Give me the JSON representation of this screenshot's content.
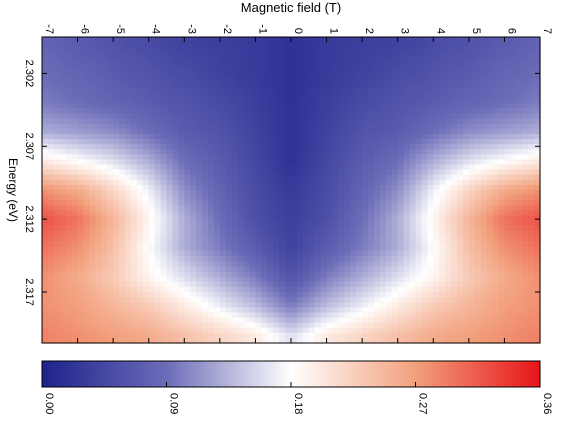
{
  "chart_data": {
    "type": "heatmap",
    "title": "",
    "xlabel": "Magnetic field (T)",
    "ylabel": "Energy (eV)",
    "x_ticks": [
      "-7",
      "-6",
      "-5",
      "-4",
      "-3",
      "-2",
      "-1",
      "0",
      "1",
      "2",
      "3",
      "4",
      "5",
      "6",
      "7"
    ],
    "y_ticks": [
      "2.302",
      "2.307",
      "2.312",
      "2.317"
    ],
    "xlim": [
      -7,
      7
    ],
    "ylim": [
      2.2995,
      2.3205
    ],
    "orientation": "rotated 90 degrees clockwise",
    "colorbar": {
      "ticks": [
        "0.00",
        "0.09",
        "0.18",
        "0.27",
        "0.36"
      ],
      "range": [
        0,
        0.36
      ],
      "colors": [
        "#1e228c",
        "#6c6cb8",
        "#ffffff",
        "#f2a07c",
        "#e8141a"
      ]
    },
    "field_values": [
      -7,
      -6,
      -5,
      -4,
      -3,
      -2,
      -1,
      0,
      1,
      2,
      3,
      4,
      5,
      6,
      7
    ],
    "energy_values": [
      2.3,
      2.302,
      2.304,
      2.306,
      2.308,
      2.31,
      2.312,
      2.314,
      2.316,
      2.318,
      2.32
    ],
    "z_values": [
      [
        0.08,
        0.07,
        0.06,
        0.05,
        0.04,
        0.035,
        0.03,
        0.02,
        0.03,
        0.035,
        0.04,
        0.05,
        0.06,
        0.07,
        0.08
      ],
      [
        0.09,
        0.08,
        0.07,
        0.06,
        0.05,
        0.04,
        0.03,
        0.02,
        0.03,
        0.04,
        0.05,
        0.06,
        0.07,
        0.08,
        0.09
      ],
      [
        0.1,
        0.09,
        0.08,
        0.07,
        0.06,
        0.05,
        0.035,
        0.02,
        0.035,
        0.05,
        0.06,
        0.07,
        0.08,
        0.09,
        0.1
      ],
      [
        0.13,
        0.12,
        0.11,
        0.09,
        0.07,
        0.06,
        0.04,
        0.02,
        0.04,
        0.06,
        0.07,
        0.09,
        0.11,
        0.12,
        0.13
      ],
      [
        0.2,
        0.18,
        0.16,
        0.13,
        0.09,
        0.07,
        0.045,
        0.02,
        0.045,
        0.07,
        0.09,
        0.13,
        0.16,
        0.18,
        0.2
      ],
      [
        0.28,
        0.26,
        0.22,
        0.17,
        0.11,
        0.08,
        0.05,
        0.03,
        0.05,
        0.08,
        0.11,
        0.17,
        0.22,
        0.26,
        0.28
      ],
      [
        0.32,
        0.3,
        0.25,
        0.19,
        0.13,
        0.09,
        0.055,
        0.035,
        0.055,
        0.09,
        0.13,
        0.19,
        0.25,
        0.3,
        0.32
      ],
      [
        0.3,
        0.28,
        0.24,
        0.18,
        0.13,
        0.1,
        0.07,
        0.04,
        0.07,
        0.1,
        0.13,
        0.18,
        0.24,
        0.28,
        0.3
      ],
      [
        0.28,
        0.26,
        0.23,
        0.19,
        0.16,
        0.13,
        0.1,
        0.06,
        0.1,
        0.13,
        0.16,
        0.19,
        0.23,
        0.26,
        0.28
      ],
      [
        0.28,
        0.27,
        0.25,
        0.23,
        0.2,
        0.17,
        0.14,
        0.1,
        0.14,
        0.17,
        0.2,
        0.23,
        0.25,
        0.27,
        0.28
      ],
      [
        0.29,
        0.28,
        0.27,
        0.26,
        0.24,
        0.22,
        0.2,
        0.16,
        0.2,
        0.22,
        0.24,
        0.26,
        0.27,
        0.28,
        0.29
      ]
    ]
  }
}
